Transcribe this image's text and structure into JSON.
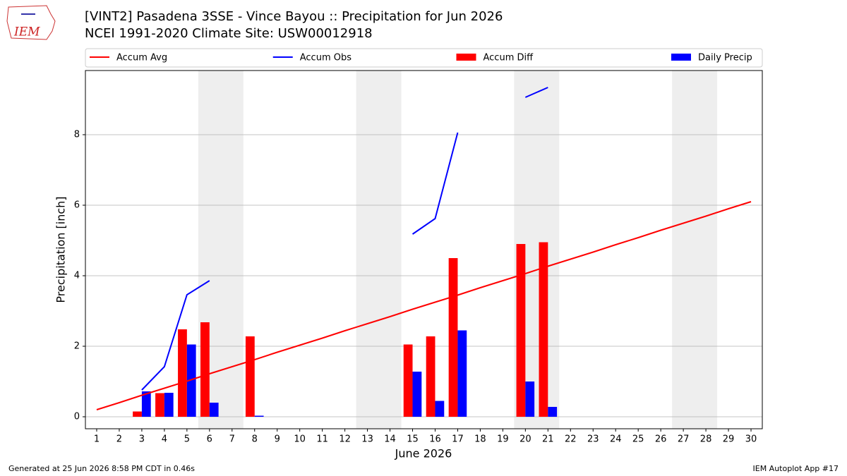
{
  "logo_text": "IEM",
  "footer": {
    "left": "Generated at 25 Jun 2026 8:58 PM CDT in 0.46s",
    "right": "IEM Autoplot App #17"
  },
  "chart_data": {
    "type": "combo",
    "title": "[VINT2] Pasadena 3SSE - Vince Bayou :: Precipitation for Jun 2026",
    "subtitle": "NCEI 1991-2020 Climate Site: USW00012918",
    "x_label": "June 2026",
    "y_label": "Precipitation [inch]",
    "x": [
      1,
      2,
      3,
      4,
      5,
      6,
      7,
      8,
      9,
      10,
      11,
      12,
      13,
      14,
      15,
      16,
      17,
      18,
      19,
      20,
      21,
      22,
      23,
      24,
      25,
      26,
      27,
      28,
      29,
      30
    ],
    "xlim": [
      0.5,
      30.5
    ],
    "xticks": [
      1,
      2,
      3,
      4,
      5,
      6,
      7,
      8,
      9,
      10,
      11,
      12,
      13,
      14,
      15,
      16,
      17,
      18,
      19,
      20,
      21,
      22,
      23,
      24,
      25,
      26,
      27,
      28,
      29,
      30
    ],
    "ylim": [
      -0.34,
      9.82
    ],
    "yticks": [
      0,
      2,
      4,
      6,
      8
    ],
    "grid": true,
    "shaded_spans": [
      [
        5.5,
        7.5
      ],
      [
        12.5,
        14.5
      ],
      [
        19.5,
        21.5
      ],
      [
        26.5,
        28.5
      ]
    ],
    "shade_color": "#eeeeee",
    "series": [
      {
        "name": "Accum Avg",
        "type": "line",
        "color": "#ff0000",
        "values": [
          0.2,
          0.4,
          0.61,
          0.81,
          1.01,
          1.22,
          1.42,
          1.62,
          1.83,
          2.03,
          2.23,
          2.44,
          2.64,
          2.84,
          3.05,
          3.25,
          3.45,
          3.66,
          3.86,
          4.06,
          4.27,
          4.47,
          4.67,
          4.88,
          5.08,
          5.29,
          5.49,
          5.69,
          5.9,
          6.1
        ]
      },
      {
        "name": "Accum Obs",
        "type": "line",
        "color": "#0000ff",
        "values": [
          null,
          null,
          0.76,
          1.42,
          3.46,
          3.86,
          null,
          null,
          null,
          null,
          null,
          null,
          null,
          null,
          5.18,
          5.62,
          8.06,
          null,
          null,
          9.06,
          9.34,
          null,
          null,
          null,
          null,
          null,
          null,
          null,
          null,
          null
        ]
      },
      {
        "name": "Accum Diff",
        "type": "bar",
        "color": "#ff0000",
        "offset": -0.4,
        "width": 0.4,
        "values": [
          null,
          null,
          0.15,
          0.67,
          2.48,
          2.68,
          null,
          2.28,
          null,
          null,
          null,
          null,
          null,
          null,
          2.05,
          2.28,
          4.5,
          null,
          null,
          4.9,
          4.95,
          null,
          null,
          null,
          null,
          null,
          null,
          null,
          null,
          null
        ]
      },
      {
        "name": "Daily Precip",
        "type": "bar",
        "color": "#0000ff",
        "offset": 0,
        "width": 0.4,
        "values": [
          null,
          null,
          0.72,
          0.68,
          2.05,
          0.4,
          null,
          0.03,
          null,
          null,
          null,
          null,
          null,
          null,
          1.28,
          0.45,
          2.45,
          null,
          null,
          1.0,
          0.28,
          null,
          null,
          null,
          null,
          null,
          null,
          null,
          null,
          null
        ]
      }
    ]
  }
}
